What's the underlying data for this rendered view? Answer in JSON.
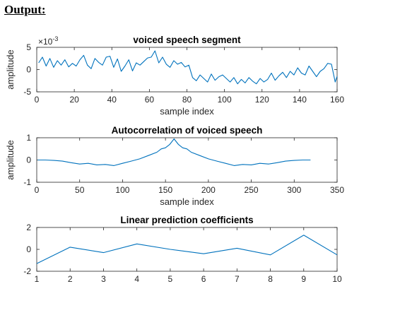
{
  "heading": "Output:",
  "chart_data": [
    {
      "type": "line",
      "title": "voiced speech segment",
      "xlabel": "sample index",
      "ylabel": "amplitude",
      "y_exponent": "×10",
      "y_exponent_power": "-3",
      "xlim": [
        0,
        160
      ],
      "ylim": [
        -5,
        5
      ],
      "xticks": [
        0,
        20,
        40,
        60,
        80,
        100,
        120,
        140,
        160
      ],
      "yticks": [
        -5,
        0,
        5
      ],
      "line_color": "#0072BD",
      "series": [
        {
          "x": [
            1,
            3,
            5,
            7,
            9,
            11,
            13,
            15,
            17,
            19,
            21,
            23,
            25,
            27,
            29,
            31,
            33,
            35,
            37,
            39,
            41,
            43,
            45,
            47,
            49,
            51,
            53,
            55,
            57,
            59,
            61,
            63,
            65,
            67,
            69,
            71,
            73,
            75,
            77,
            79,
            81,
            83,
            85,
            87,
            89,
            91,
            93,
            95,
            97,
            99,
            101,
            103,
            105,
            107,
            109,
            111,
            113,
            115,
            117,
            119,
            121,
            123,
            125,
            127,
            129,
            131,
            133,
            135,
            137,
            139,
            141,
            143,
            145,
            147,
            149,
            151,
            153,
            155,
            157,
            159,
            160
          ],
          "y": [
            1.5,
            2.8,
            0.8,
            2.5,
            0.5,
            2.0,
            1.0,
            2.2,
            0.6,
            1.4,
            0.8,
            2.2,
            3.2,
            1.0,
            0.2,
            2.5,
            1.6,
            1.0,
            2.8,
            3.0,
            0.5,
            2.4,
            -0.4,
            0.8,
            2.2,
            -0.3,
            1.5,
            1.0,
            1.8,
            2.6,
            2.8,
            4.2,
            1.5,
            2.8,
            1.2,
            0.5,
            2.0,
            1.2,
            1.6,
            0.6,
            1.0,
            -1.8,
            -2.5,
            -1.2,
            -2.0,
            -2.8,
            -1.0,
            -2.4,
            -1.6,
            -1.2,
            -2.0,
            -2.8,
            -1.8,
            -3.2,
            -2.2,
            -3.0,
            -1.8,
            -2.6,
            -3.2,
            -2.0,
            -2.8,
            -2.2,
            -0.8,
            -2.4,
            -1.4,
            -0.6,
            -1.8,
            -0.4,
            -1.2,
            0.4,
            -0.8,
            -1.2,
            0.8,
            -0.4,
            -1.6,
            -0.4,
            0.2,
            1.4,
            1.2,
            -2.8,
            -1.5
          ]
        }
      ]
    },
    {
      "type": "line",
      "title": "Autocorrelation of voiced speech",
      "xlabel": "sample index",
      "ylabel": "amplitude",
      "xlim": [
        0,
        350
      ],
      "ylim": [
        -1,
        1
      ],
      "xticks": [
        0,
        50,
        100,
        150,
        200,
        250,
        300,
        350
      ],
      "yticks": [
        -1,
        0,
        1
      ],
      "line_color": "#0072BD",
      "series": [
        {
          "x": [
            1,
            10,
            20,
            30,
            40,
            50,
            60,
            70,
            80,
            90,
            100,
            110,
            120,
            130,
            140,
            145,
            150,
            155,
            160,
            165,
            170,
            175,
            180,
            190,
            200,
            210,
            220,
            230,
            240,
            250,
            260,
            270,
            280,
            290,
            300,
            310,
            319
          ],
          "y": [
            0.0,
            0.0,
            -0.02,
            -0.05,
            -0.12,
            -0.18,
            -0.15,
            -0.22,
            -0.2,
            -0.25,
            -0.15,
            -0.05,
            0.05,
            0.2,
            0.35,
            0.5,
            0.55,
            0.7,
            0.95,
            0.7,
            0.55,
            0.5,
            0.35,
            0.2,
            0.05,
            -0.05,
            -0.15,
            -0.25,
            -0.2,
            -0.22,
            -0.15,
            -0.18,
            -0.12,
            -0.05,
            -0.02,
            0.0,
            0.0
          ]
        }
      ]
    },
    {
      "type": "line",
      "title": "Linear prediction coefficients",
      "xlabel": "",
      "ylabel": "",
      "xlim": [
        1,
        10
      ],
      "ylim": [
        -2,
        2
      ],
      "xticks": [
        1,
        2,
        3,
        4,
        5,
        6,
        7,
        8,
        9,
        10
      ],
      "yticks": [
        -2,
        0,
        2
      ],
      "line_color": "#0072BD",
      "series": [
        {
          "x": [
            1,
            2,
            3,
            4,
            5,
            6,
            7,
            8,
            9,
            10
          ],
          "y": [
            -1.3,
            0.2,
            -0.3,
            0.5,
            0.0,
            -0.4,
            0.1,
            -0.5,
            1.3,
            -0.5
          ]
        }
      ]
    }
  ]
}
